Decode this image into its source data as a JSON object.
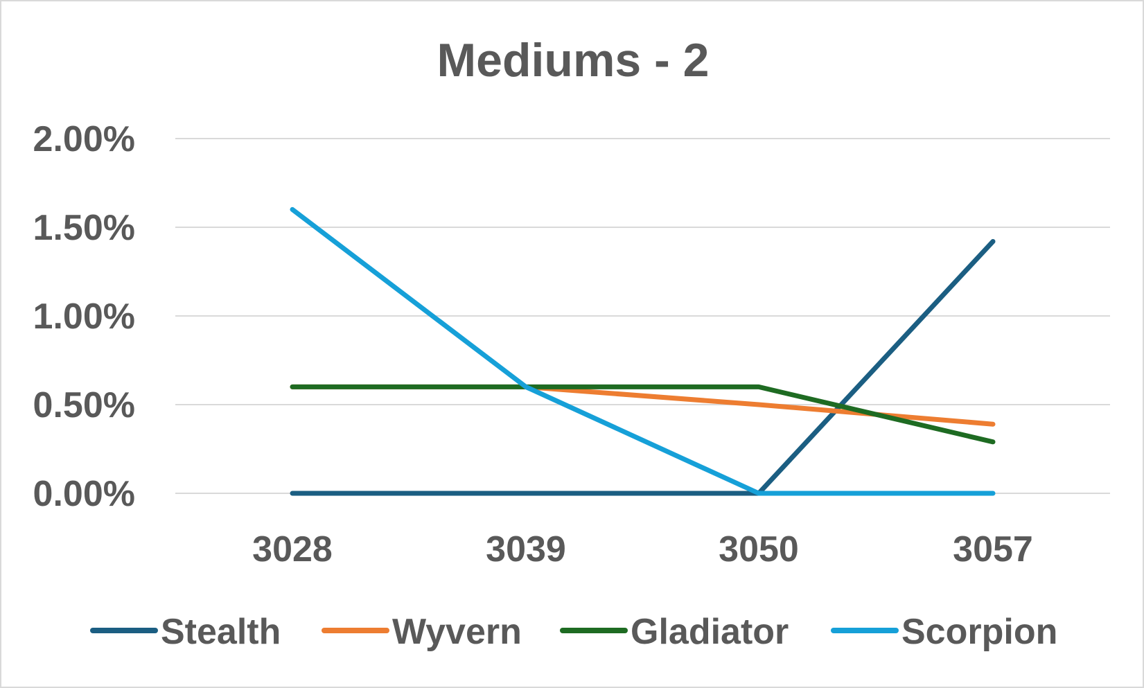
{
  "chart_data": {
    "type": "line",
    "title": "Mediums - 2",
    "xlabel": "",
    "ylabel": "",
    "categories": [
      "3028",
      "3039",
      "3050",
      "3057"
    ],
    "y_ticks": [
      "0.00%",
      "0.50%",
      "1.00%",
      "1.50%",
      "2.00%"
    ],
    "ylim": [
      0,
      0.02
    ],
    "grid": true,
    "legend_position": "bottom",
    "series": [
      {
        "name": "Stealth",
        "color": "#1b5e82",
        "values": [
          0.0,
          0.0,
          0.0,
          0.0142
        ]
      },
      {
        "name": "Wyvern",
        "color": "#ed7d31",
        "values": [
          0.006,
          0.006,
          0.005,
          0.0039
        ]
      },
      {
        "name": "Gladiator",
        "color": "#1e6b22",
        "values": [
          0.006,
          0.006,
          0.006,
          0.0029
        ]
      },
      {
        "name": "Scorpion",
        "color": "#16a0d8",
        "values": [
          0.016,
          0.006,
          0.0,
          0.0
        ]
      }
    ]
  }
}
